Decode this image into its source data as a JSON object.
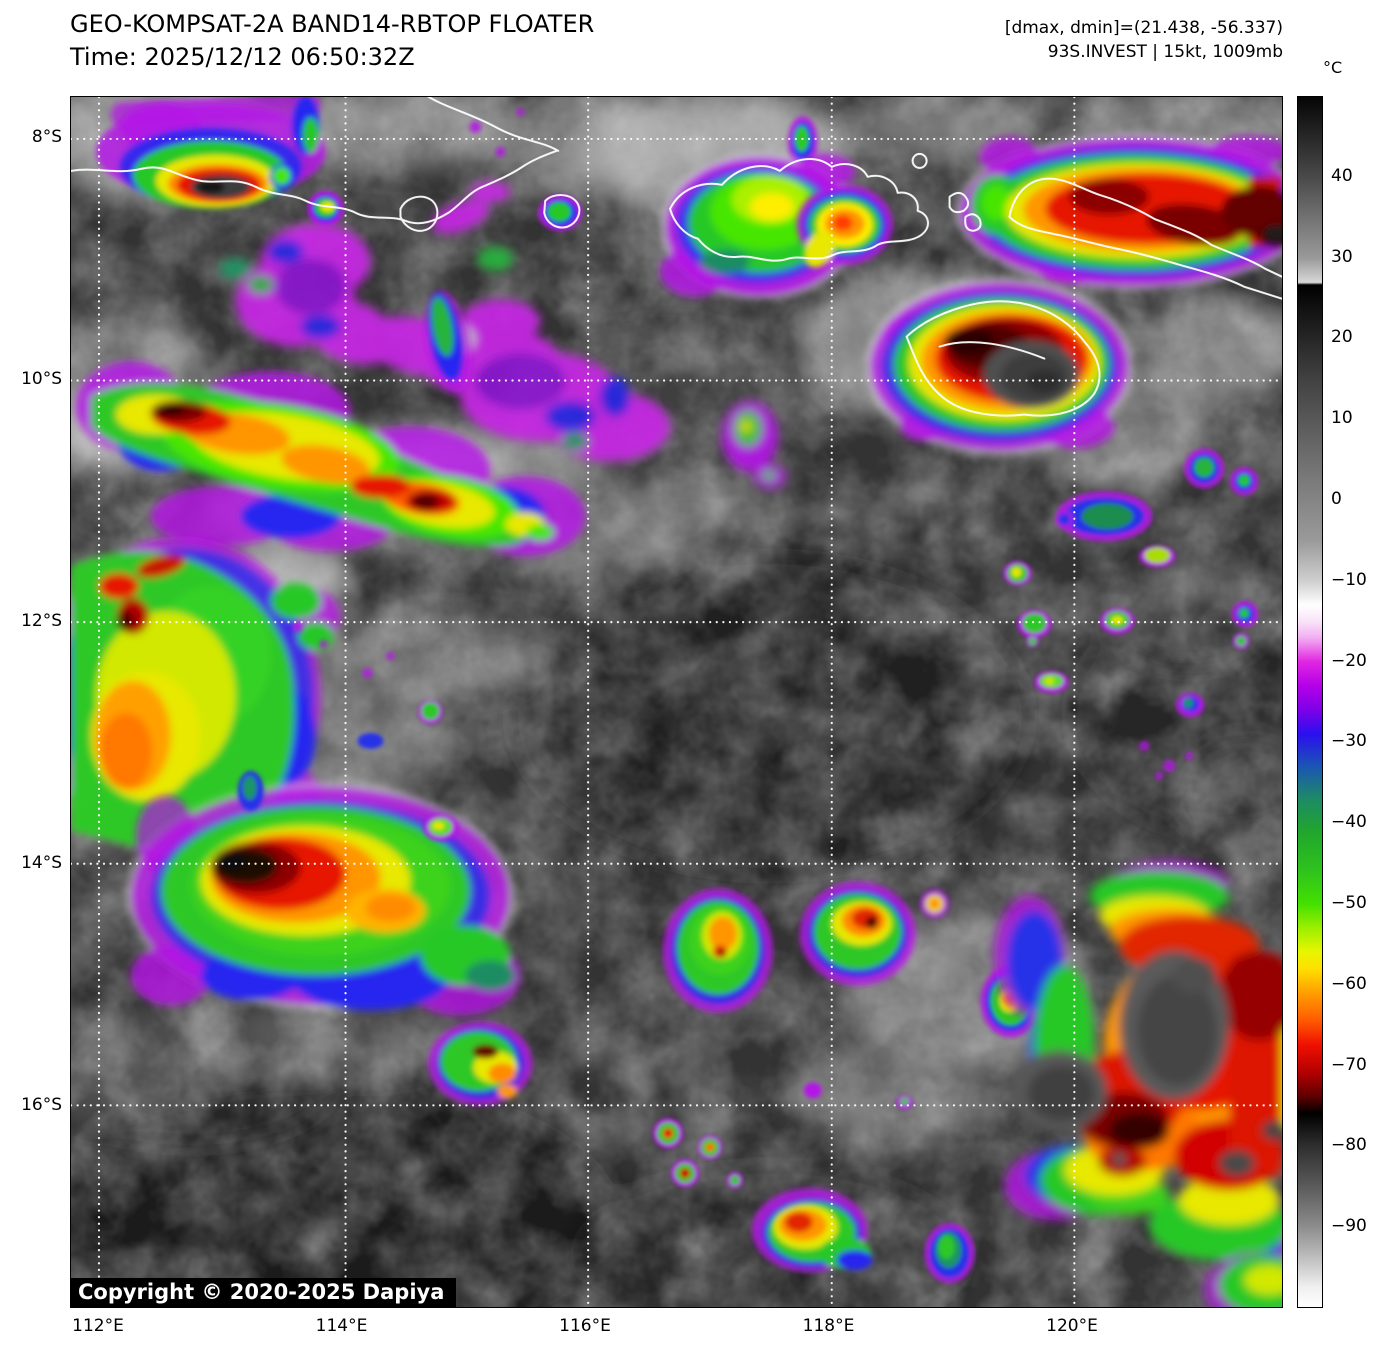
{
  "header": {
    "title": "GEO-KOMPSAT-2A BAND14-RBTOP FLOATER",
    "time": "Time: 2025/12/12 06:50:32Z"
  },
  "annotations": {
    "line1": "[dmax, dmin]=(21.438, -56.337)",
    "line2": "93S.INVEST | 15kt, 1009mb"
  },
  "colorbar": {
    "unit": "°C",
    "domain": [
      50,
      -100
    ],
    "ticks": [
      {
        "label": "40",
        "value": 40
      },
      {
        "label": "30",
        "value": 30
      },
      {
        "label": "20",
        "value": 20
      },
      {
        "label": "10",
        "value": 10
      },
      {
        "label": "0",
        "value": 0
      },
      {
        "label": "−10",
        "value": -10
      },
      {
        "label": "−20",
        "value": -20
      },
      {
        "label": "−30",
        "value": -30
      },
      {
        "label": "−40",
        "value": -40
      },
      {
        "label": "−50",
        "value": -50
      },
      {
        "label": "−60",
        "value": -60
      },
      {
        "label": "−70",
        "value": -70
      },
      {
        "label": "−80",
        "value": -80
      },
      {
        "label": "−90",
        "value": -90
      }
    ],
    "stops": [
      {
        "v": 50,
        "c": "#050505"
      },
      {
        "v": 40,
        "c": "#4a4a4a"
      },
      {
        "v": 30,
        "c": "#9a9a9a"
      },
      {
        "v": 27,
        "c": "#d8d8d8"
      },
      {
        "v": 26.7,
        "c": "#000000"
      },
      {
        "v": 24,
        "c": "#101010"
      },
      {
        "v": 15.5,
        "c": "#3f3f3f"
      },
      {
        "v": 5,
        "c": "#6f6f6f"
      },
      {
        "v": -5,
        "c": "#9a9a9a"
      },
      {
        "v": -10,
        "c": "#cfcfcf"
      },
      {
        "v": -13,
        "c": "#ffffff"
      },
      {
        "v": -15,
        "c": "#f8e4f8"
      },
      {
        "v": -17,
        "c": "#f2b0f2"
      },
      {
        "v": -20,
        "c": "#e126e1"
      },
      {
        "v": -23,
        "c": "#b400e8"
      },
      {
        "v": -26,
        "c": "#7d00e8"
      },
      {
        "v": -29,
        "c": "#2a10ee"
      },
      {
        "v": -33,
        "c": "#1b55b4"
      },
      {
        "v": -37,
        "c": "#1d8a66"
      },
      {
        "v": -41,
        "c": "#21a52e"
      },
      {
        "v": -46,
        "c": "#2fc31c"
      },
      {
        "v": -50,
        "c": "#44e000"
      },
      {
        "v": -53,
        "c": "#9cee00"
      },
      {
        "v": -56,
        "c": "#e8f600"
      },
      {
        "v": -58,
        "c": "#ffe000"
      },
      {
        "v": -61,
        "c": "#ffa000"
      },
      {
        "v": -64.5,
        "c": "#ff5a00"
      },
      {
        "v": -67.5,
        "c": "#f01000"
      },
      {
        "v": -71,
        "c": "#b20000"
      },
      {
        "v": -74,
        "c": "#5a0000"
      },
      {
        "v": -75.5,
        "c": "#170000"
      },
      {
        "v": -76,
        "c": "#000000"
      },
      {
        "v": -80,
        "c": "#2e2e2e"
      },
      {
        "v": -85,
        "c": "#5a5a5a"
      },
      {
        "v": -90,
        "c": "#8c8c8c"
      },
      {
        "v": -94,
        "c": "#c0c0c0"
      },
      {
        "v": -97.5,
        "c": "#efefef"
      },
      {
        "v": -100,
        "c": "#ffffff"
      }
    ]
  },
  "axes": {
    "lat_ticks": [
      {
        "label": "8°S",
        "value": 8
      },
      {
        "label": "10°S",
        "value": 10
      },
      {
        "label": "12°S",
        "value": 12
      },
      {
        "label": "14°S",
        "value": 14
      },
      {
        "label": "16°S",
        "value": 16
      }
    ],
    "lon_ticks": [
      {
        "label": "112°E",
        "value": 112
      },
      {
        "label": "114°E",
        "value": 114
      },
      {
        "label": "116°E",
        "value": 116
      },
      {
        "label": "118°E",
        "value": 118
      },
      {
        "label": "120°E",
        "value": 120
      }
    ]
  },
  "map": {
    "copyright": "Copyright © 2020-2025 Dapiya"
  }
}
